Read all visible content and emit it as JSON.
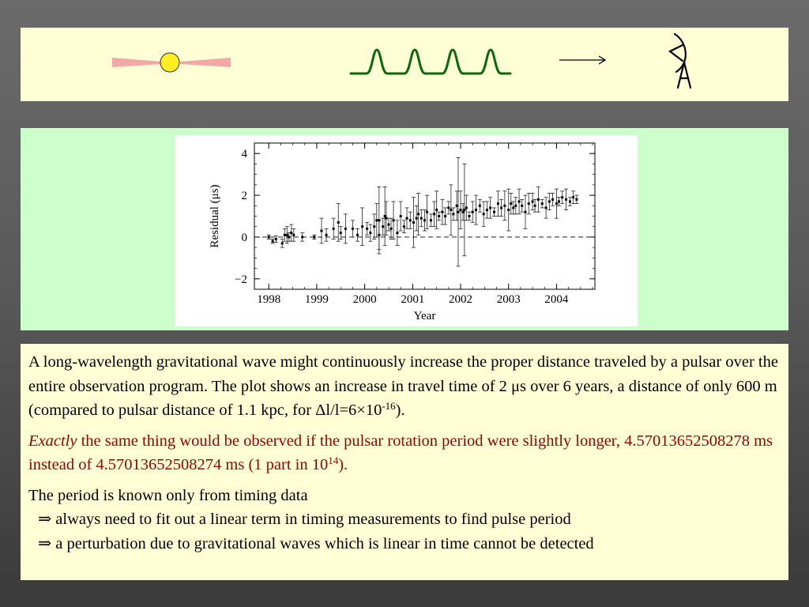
{
  "chart_data": {
    "type": "scatter",
    "title": "",
    "xlabel": "Year",
    "ylabel": "Residual (μs)",
    "xlim": [
      1997.7,
      2004.8
    ],
    "ylim": [
      -2.5,
      4.5
    ],
    "x_ticks": [
      1998,
      1999,
      2000,
      2001,
      2002,
      2003,
      2004
    ],
    "y_ticks": [
      4,
      2,
      0,
      -2
    ],
    "x_tick_labels": [
      "1998",
      "1999",
      "2000",
      "2001",
      "2002",
      "2003",
      "2004"
    ],
    "y_tick_labels": [
      "4",
      "2",
      "0",
      "−2"
    ],
    "reference_line": 0,
    "grid": false,
    "series": [
      {
        "x": [
          1998.0,
          1998.08,
          1998.15,
          1998.28,
          1998.33,
          1998.38,
          1998.42,
          1998.47,
          1998.52,
          1998.7,
          1998.95,
          1999.1,
          1999.2,
          1999.35,
          1999.45,
          1999.5,
          1999.6,
          1999.75,
          1999.85,
          1999.95,
          2000.05,
          2000.12,
          2000.2,
          2000.25,
          2000.3,
          2000.38,
          2000.45,
          2000.5,
          2000.55,
          2000.6,
          2000.68,
          2000.75,
          2000.82,
          2000.88,
          2000.95,
          2001.02,
          2001.08,
          2001.12,
          2001.18,
          2001.25,
          2001.3,
          2001.38,
          2001.45,
          2001.5,
          2001.55,
          2001.62,
          2001.68,
          2001.75,
          2001.8,
          2001.85,
          2001.92,
          2002.0,
          2002.05,
          2002.12,
          2002.18,
          2002.25,
          2002.32,
          2002.4,
          2002.48,
          2002.55,
          2002.62,
          2002.7,
          2002.78,
          2002.85,
          2002.92,
          2003.0,
          2003.05,
          2003.1,
          2003.15,
          2003.22,
          2003.28,
          2003.35,
          2003.42,
          2003.5,
          2003.55,
          2003.62,
          2003.7,
          2003.78,
          2003.85,
          2003.92,
          2004.0,
          2004.05,
          2004.12,
          2004.2,
          2004.28,
          2004.35,
          2004.42
        ],
        "y": [
          0.0,
          -0.2,
          -0.1,
          -0.3,
          0.1,
          0.1,
          0.0,
          0.2,
          0.1,
          0.0,
          0.0,
          0.3,
          0.1,
          0.4,
          0.7,
          0.2,
          0.4,
          0.4,
          0.1,
          0.5,
          0.4,
          0.2,
          0.5,
          0.8,
          0.1,
          0.5,
          0.9,
          0.6,
          0.4,
          0.8,
          0.2,
          1.0,
          0.5,
          0.9,
          0.8,
          0.7,
          0.9,
          1.1,
          0.9,
          0.8,
          1.2,
          0.8,
          1.1,
          1.3,
          1.0,
          1.2,
          1.0,
          1.4,
          1.3,
          1.1,
          1.5,
          1.3,
          1.2,
          1.4,
          1.0,
          1.2,
          1.3,
          1.5,
          1.1,
          1.3,
          1.4,
          1.2,
          1.6,
          1.4,
          1.5,
          1.3,
          1.6,
          1.4,
          1.5,
          1.7,
          1.5,
          1.2,
          1.6,
          1.7,
          1.5,
          1.8,
          1.6,
          1.4,
          1.7,
          1.8,
          1.6,
          1.7,
          1.9,
          1.8,
          1.7,
          1.9,
          1.8
        ],
        "err": [
          0.1,
          0.1,
          0.15,
          0.2,
          0.3,
          0.4,
          0.2,
          0.4,
          0.3,
          0.2,
          0.1,
          0.6,
          0.3,
          0.5,
          0.9,
          0.3,
          0.7,
          0.4,
          0.3,
          0.9,
          0.3,
          0.4,
          0.6,
          0.8,
          0.7,
          0.4,
          0.8,
          0.3,
          0.5,
          0.9,
          0.6,
          0.7,
          0.3,
          0.5,
          0.4,
          1.2,
          0.6,
          1.0,
          0.4,
          0.5,
          0.8,
          0.3,
          0.6,
          0.9,
          0.2,
          0.6,
          0.4,
          0.3,
          1.2,
          0.3,
          0.7,
          0.9,
          0.4,
          0.6,
          0.2,
          0.5,
          0.7,
          0.3,
          0.6,
          0.4,
          0.5,
          0.2,
          0.6,
          0.4,
          0.7,
          1.0,
          0.5,
          0.3,
          0.4,
          0.6,
          0.3,
          0.8,
          0.5,
          0.4,
          0.3,
          0.6,
          0.2,
          0.5,
          0.4,
          0.3,
          0.7,
          0.2,
          0.3,
          0.5,
          0.2,
          0.3,
          0.2
        ]
      },
      {
        "x": [
          2000.3,
          2000.42,
          2001.95,
          2002.08
        ],
        "y": [
          0.8,
          1.0,
          1.2,
          1.3
        ],
        "err": [
          1.6,
          1.4,
          2.6,
          2.2
        ]
      }
    ]
  },
  "colors": {
    "top_panel_bg": "#ffffd6",
    "plot_panel_bg": "#ccffcc",
    "text_panel_bg": "#ffffd6",
    "pulsar_beam": "#f4a7a7",
    "pulsar_star": "#ffee22",
    "wave": "#0a6a0a",
    "emphasis_text": "#990000"
  },
  "icons": {
    "pulsar": "pulsar-icon",
    "pulse_train": "pulse-train-icon",
    "arrow": "right-arrow-icon",
    "telescope": "radio-telescope-icon"
  },
  "text": {
    "p1_a": "A long-wavelength gravitational wave might continuously increase the proper distance traveled by a pulsar over the entire observation program.  The plot shows an increase in travel time of 2 μs over 6 years, a distance of only 600 m (compared to pulsar distance of 1.1 kpc, for Δl/l=6×10",
    "p1_sup": "-16",
    "p1_end": ").",
    "p2_em": "Exactly",
    "p2_rest": " the same thing would be observed if the pulsar rotation period were slightly longer, 4.57013652508278 ms instead of 4.57013652508274 ms (1 part in 10",
    "p2_sup": "14",
    "p2_end": ").",
    "p3_line1": "The period is known only from timing data",
    "p3_bullet1": "⇒ always need to fit out a linear term in timing measurements to find pulse period",
    "p3_bullet2": "⇒ a perturbation due to gravitational waves which is linear in time cannot be detected"
  }
}
